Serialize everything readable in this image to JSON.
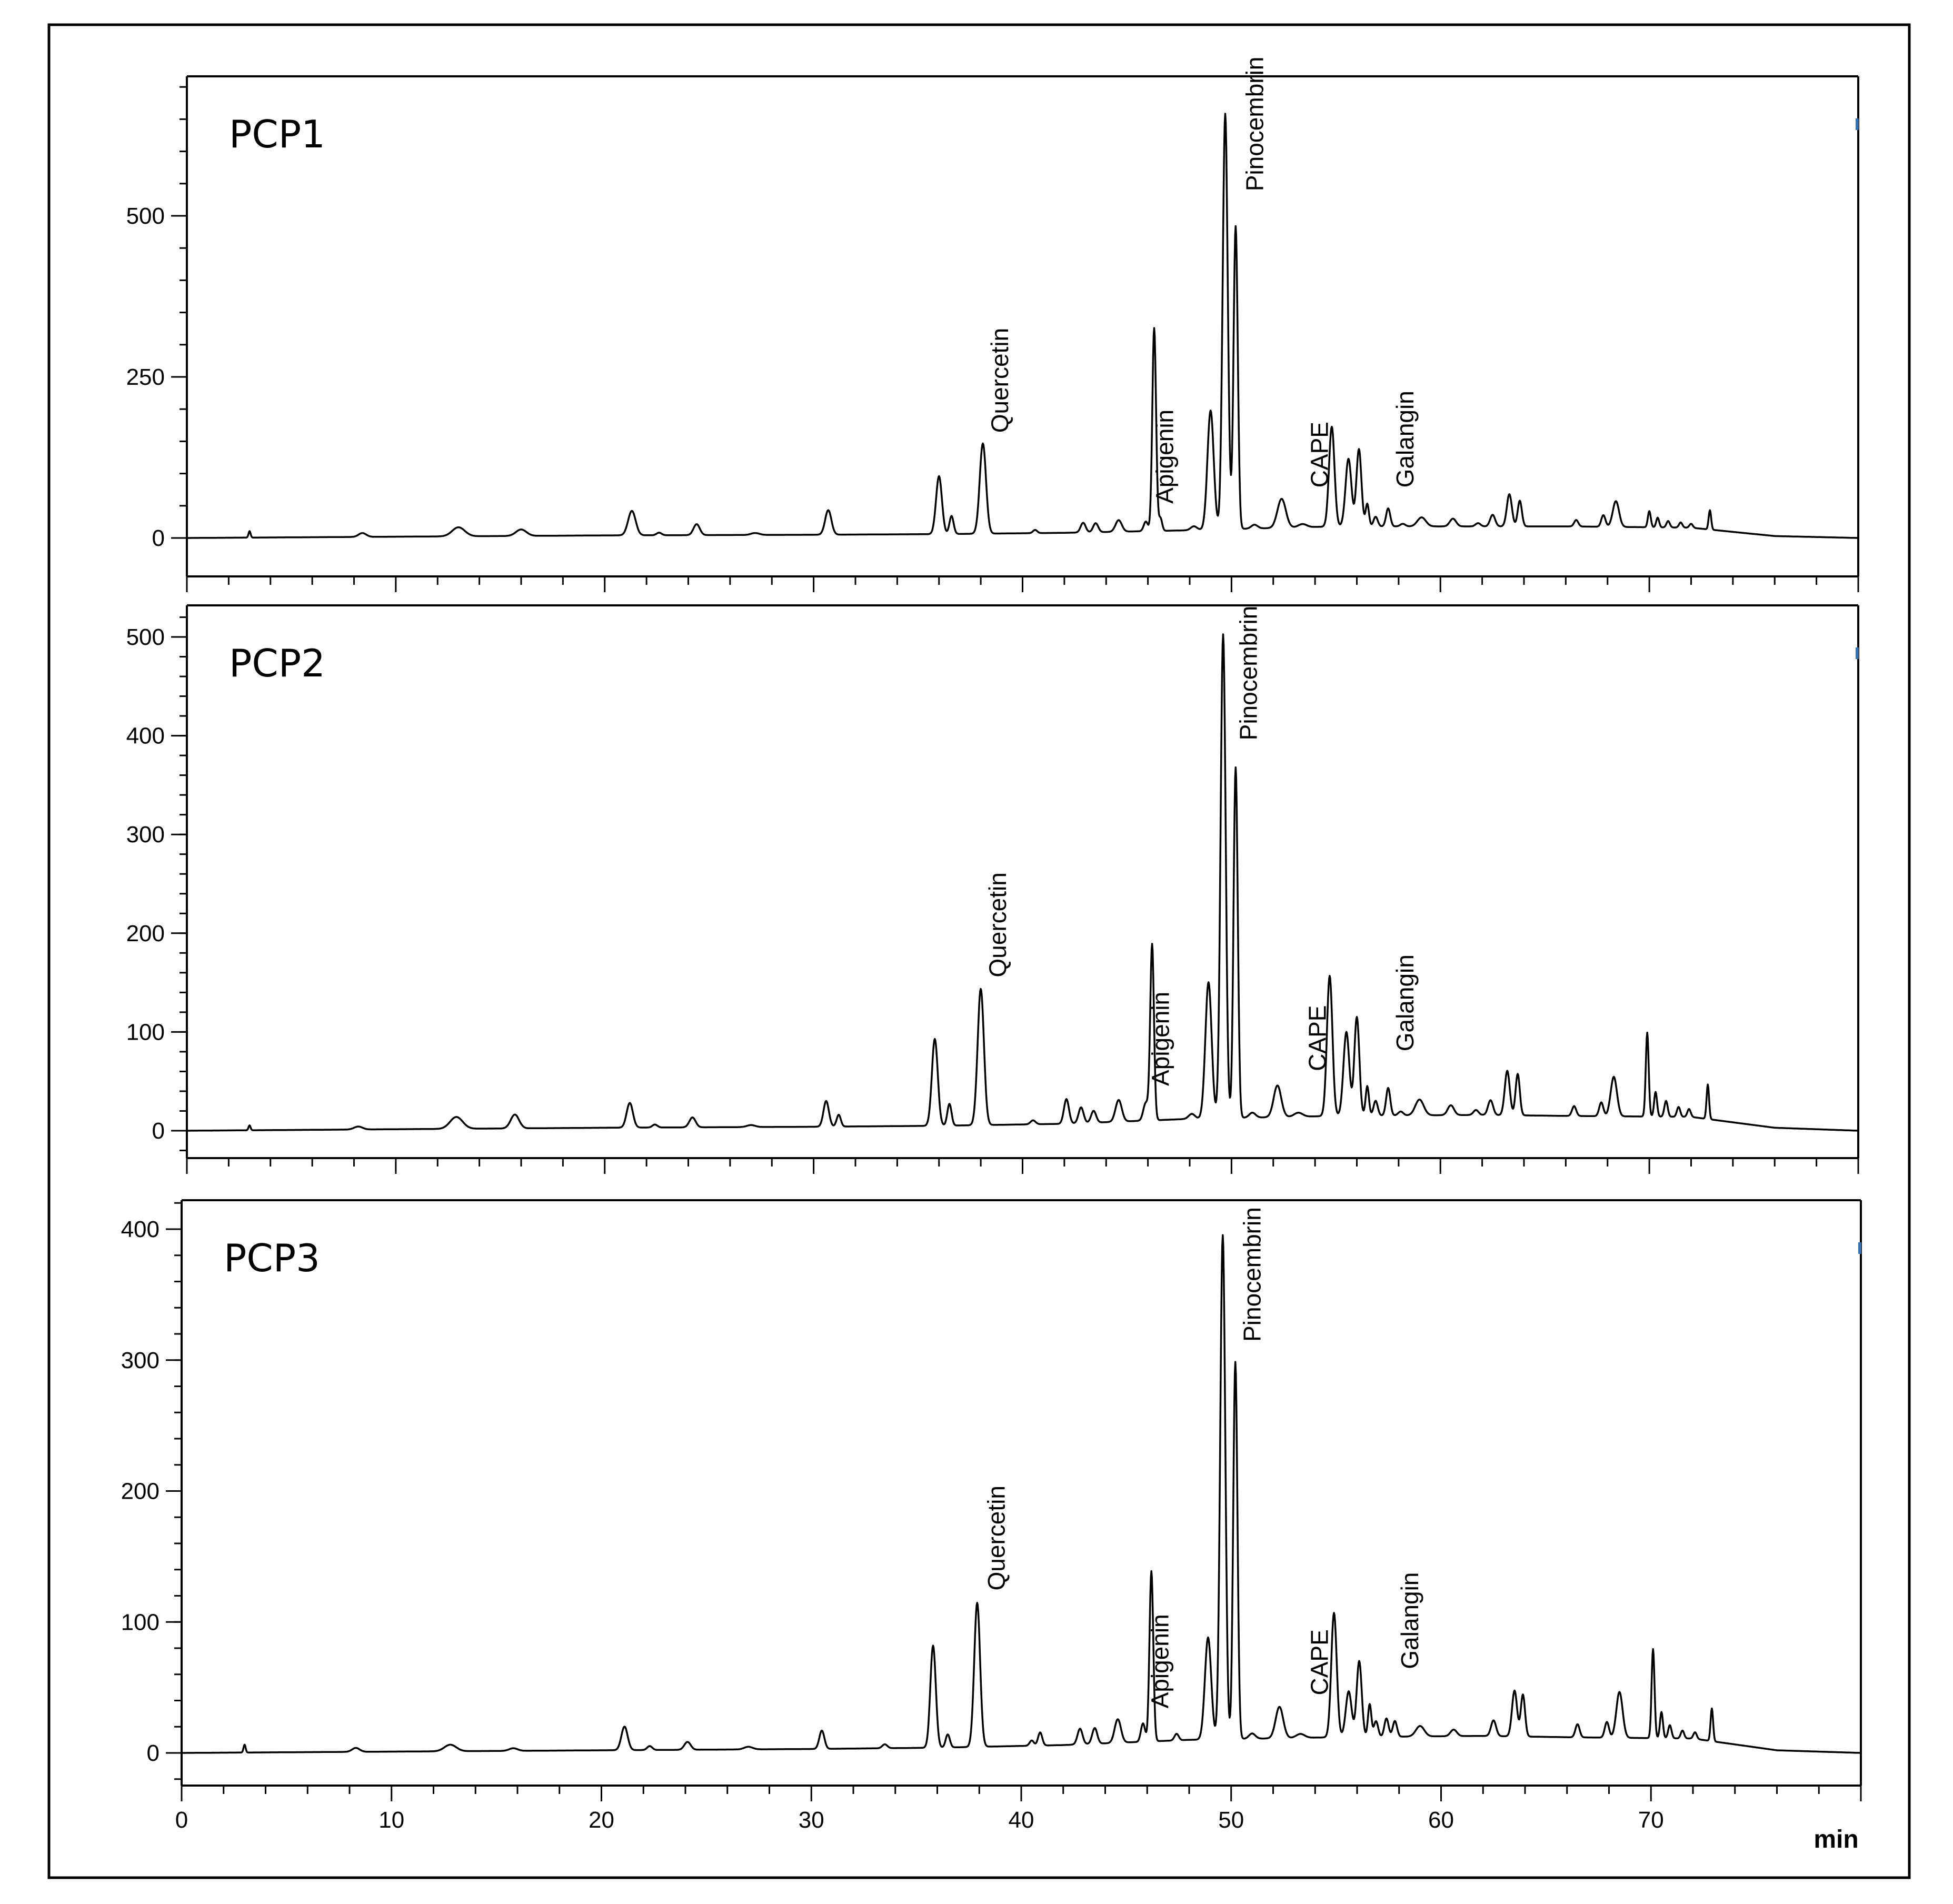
{
  "chart_data": [
    {
      "type": "line",
      "panel_label": "PCP1",
      "xlabel": "min",
      "xlim": [
        0,
        80
      ],
      "x_ticks": [
        0,
        10,
        20,
        30,
        40,
        50,
        60,
        70
      ],
      "x_tick_labels_visible": false,
      "ylim": [
        -40,
        720
      ],
      "y_ticks": [
        0,
        250,
        500
      ],
      "y_tick_labels": [
        "0",
        "250",
        "500"
      ],
      "grid": false,
      "annotations": [
        {
          "text": "Quercetin",
          "x": 38.1,
          "y": 155
        },
        {
          "text": "Apigenin",
          "x": 46.0,
          "y": 45
        },
        {
          "text": "Pinocembrin",
          "x": 50.3,
          "y": 530
        },
        {
          "text": "CAPE",
          "x": 53.4,
          "y": 70
        },
        {
          "text": "Galangin",
          "x": 57.5,
          "y": 70
        }
      ],
      "baseline": [
        [
          0,
          0
        ],
        [
          20,
          4
        ],
        [
          30,
          5
        ],
        [
          36,
          6
        ],
        [
          42,
          8
        ],
        [
          48,
          12
        ],
        [
          55,
          18
        ],
        [
          62,
          18
        ],
        [
          66,
          18
        ],
        [
          72,
          16
        ],
        [
          76,
          3
        ],
        [
          80,
          0
        ]
      ],
      "peaks": [
        [
          3.0,
          10,
          0.05
        ],
        [
          8.4,
          6,
          0.18
        ],
        [
          13.0,
          14,
          0.3
        ],
        [
          16.0,
          10,
          0.25
        ],
        [
          21.3,
          38,
          0.18
        ],
        [
          22.6,
          4,
          0.12
        ],
        [
          24.4,
          17,
          0.15
        ],
        [
          27.2,
          3,
          0.2
        ],
        [
          30.7,
          38,
          0.15
        ],
        [
          36.0,
          90,
          0.14
        ],
        [
          36.6,
          28,
          0.1
        ],
        [
          38.1,
          140,
          0.15
        ],
        [
          40.6,
          5,
          0.1
        ],
        [
          42.9,
          15,
          0.12
        ],
        [
          43.5,
          14,
          0.12
        ],
        [
          44.6,
          18,
          0.15
        ],
        [
          45.9,
          15,
          0.1
        ],
        [
          46.3,
          315,
          0.09
        ],
        [
          46.6,
          20,
          0.08
        ],
        [
          48.2,
          6,
          0.15
        ],
        [
          49.0,
          185,
          0.15
        ],
        [
          49.7,
          645,
          0.12
        ],
        [
          50.2,
          470,
          0.1
        ],
        [
          51.1,
          6,
          0.15
        ],
        [
          52.4,
          45,
          0.2
        ],
        [
          53.4,
          5,
          0.2
        ],
        [
          54.8,
          155,
          0.13
        ],
        [
          55.6,
          105,
          0.14
        ],
        [
          56.1,
          120,
          0.12
        ],
        [
          56.5,
          35,
          0.08
        ],
        [
          56.9,
          15,
          0.1
        ],
        [
          57.5,
          28,
          0.1
        ],
        [
          58.2,
          4,
          0.12
        ],
        [
          59.1,
          14,
          0.2
        ],
        [
          60.6,
          12,
          0.15
        ],
        [
          61.8,
          5,
          0.12
        ],
        [
          62.5,
          18,
          0.12
        ],
        [
          63.3,
          50,
          0.12
        ],
        [
          63.8,
          40,
          0.1
        ],
        [
          66.5,
          10,
          0.1
        ],
        [
          67.8,
          18,
          0.1
        ],
        [
          68.4,
          40,
          0.15
        ],
        [
          70.0,
          25,
          0.07
        ],
        [
          70.4,
          15,
          0.07
        ],
        [
          70.9,
          10,
          0.08
        ],
        [
          71.5,
          8,
          0.08
        ],
        [
          72.0,
          6,
          0.08
        ],
        [
          72.9,
          30,
          0.06
        ]
      ]
    },
    {
      "type": "line",
      "panel_label": "PCP2",
      "xlabel": "min",
      "xlim": [
        0,
        80
      ],
      "x_ticks": [
        0,
        10,
        20,
        30,
        40,
        50,
        60,
        70
      ],
      "x_tick_labels_visible": false,
      "ylim": [
        -30,
        530
      ],
      "y_ticks": [
        0,
        100,
        200,
        300,
        400,
        500
      ],
      "y_tick_labels": [
        "0",
        "100",
        "200",
        "300",
        "400",
        "500"
      ],
      "grid": false,
      "annotations": [
        {
          "text": "Quercetin",
          "x": 38.0,
          "y": 150
        },
        {
          "text": "Apigenin",
          "x": 45.8,
          "y": 40
        },
        {
          "text": "Pinocembrin",
          "x": 50.0,
          "y": 390
        },
        {
          "text": "CAPE",
          "x": 53.3,
          "y": 55
        },
        {
          "text": "Galangin",
          "x": 57.5,
          "y": 75
        }
      ],
      "baseline": [
        [
          0,
          0
        ],
        [
          20,
          3
        ],
        [
          30,
          4
        ],
        [
          36,
          5
        ],
        [
          42,
          7
        ],
        [
          48,
          12
        ],
        [
          55,
          15
        ],
        [
          62,
          16
        ],
        [
          66,
          15
        ],
        [
          72,
          14
        ],
        [
          76,
          3
        ],
        [
          80,
          0
        ]
      ],
      "peaks": [
        [
          3.0,
          5,
          0.05
        ],
        [
          8.2,
          3,
          0.2
        ],
        [
          12.9,
          12,
          0.3
        ],
        [
          15.7,
          14,
          0.2
        ],
        [
          21.2,
          25,
          0.15
        ],
        [
          22.4,
          3,
          0.12
        ],
        [
          24.2,
          10,
          0.15
        ],
        [
          27.0,
          2,
          0.2
        ],
        [
          30.6,
          26,
          0.13
        ],
        [
          31.2,
          12,
          0.1
        ],
        [
          35.8,
          88,
          0.14
        ],
        [
          36.5,
          22,
          0.1
        ],
        [
          38.0,
          138,
          0.15
        ],
        [
          40.5,
          4,
          0.12
        ],
        [
          42.1,
          25,
          0.12
        ],
        [
          42.8,
          16,
          0.12
        ],
        [
          43.4,
          12,
          0.12
        ],
        [
          44.6,
          22,
          0.15
        ],
        [
          45.9,
          18,
          0.12
        ],
        [
          46.2,
          178,
          0.09
        ],
        [
          48.1,
          5,
          0.15
        ],
        [
          48.9,
          138,
          0.15
        ],
        [
          49.6,
          490,
          0.12
        ],
        [
          50.2,
          355,
          0.1
        ],
        [
          51.0,
          5,
          0.15
        ],
        [
          52.2,
          32,
          0.18
        ],
        [
          53.2,
          4,
          0.2
        ],
        [
          54.7,
          142,
          0.13
        ],
        [
          55.5,
          85,
          0.14
        ],
        [
          56.0,
          100,
          0.12
        ],
        [
          56.5,
          30,
          0.08
        ],
        [
          56.9,
          15,
          0.1
        ],
        [
          57.5,
          28,
          0.1
        ],
        [
          58.1,
          4,
          0.12
        ],
        [
          59.0,
          16,
          0.2
        ],
        [
          60.5,
          10,
          0.15
        ],
        [
          61.7,
          5,
          0.12
        ],
        [
          62.4,
          15,
          0.12
        ],
        [
          63.2,
          45,
          0.12
        ],
        [
          63.7,
          42,
          0.1
        ],
        [
          66.4,
          10,
          0.1
        ],
        [
          67.7,
          14,
          0.1
        ],
        [
          68.3,
          40,
          0.15
        ],
        [
          69.9,
          85,
          0.07
        ],
        [
          70.3,
          25,
          0.07
        ],
        [
          70.8,
          16,
          0.08
        ],
        [
          71.4,
          10,
          0.08
        ],
        [
          71.9,
          8,
          0.08
        ],
        [
          72.8,
          35,
          0.06
        ]
      ]
    },
    {
      "type": "line",
      "panel_label": "PCP3",
      "xlabel": "min",
      "xlim": [
        0,
        80
      ],
      "x_ticks": [
        0,
        10,
        20,
        30,
        40,
        50,
        60,
        70
      ],
      "x_tick_labels": [
        "0",
        "10",
        "20",
        "30",
        "40",
        "50",
        "60",
        "70"
      ],
      "x_tick_labels_visible": true,
      "ylim": [
        -20,
        425
      ],
      "y_ticks": [
        0,
        100,
        200,
        300,
        400
      ],
      "y_tick_labels": [
        "0",
        "100",
        "200",
        "300",
        "400"
      ],
      "grid": false,
      "annotations": [
        {
          "text": "Quercetin",
          "x": 38.0,
          "y": 120
        },
        {
          "text": "Apigenin",
          "x": 45.8,
          "y": 30
        },
        {
          "text": "Pinocembrin",
          "x": 50.2,
          "y": 310
        },
        {
          "text": "CAPE",
          "x": 53.4,
          "y": 40
        },
        {
          "text": "Galangin",
          "x": 57.7,
          "y": 60
        }
      ],
      "baseline": [
        [
          0,
          0
        ],
        [
          20,
          2
        ],
        [
          30,
          3
        ],
        [
          36,
          4
        ],
        [
          42,
          6
        ],
        [
          48,
          10
        ],
        [
          55,
          12
        ],
        [
          62,
          13
        ],
        [
          66,
          12
        ],
        [
          72,
          11
        ],
        [
          76,
          2
        ],
        [
          80,
          0
        ]
      ],
      "peaks": [
        [
          3.0,
          6,
          0.05
        ],
        [
          8.3,
          3,
          0.18
        ],
        [
          12.8,
          5,
          0.28
        ],
        [
          15.8,
          2,
          0.2
        ],
        [
          21.1,
          18,
          0.15
        ],
        [
          22.3,
          3,
          0.12
        ],
        [
          24.1,
          6,
          0.15
        ],
        [
          27.0,
          2,
          0.2
        ],
        [
          30.5,
          14,
          0.12
        ],
        [
          33.5,
          3,
          0.12
        ],
        [
          35.8,
          78,
          0.13
        ],
        [
          36.5,
          10,
          0.1
        ],
        [
          37.9,
          110,
          0.14
        ],
        [
          40.5,
          4,
          0.1
        ],
        [
          40.9,
          10,
          0.1
        ],
        [
          42.8,
          12,
          0.12
        ],
        [
          43.5,
          12,
          0.12
        ],
        [
          44.6,
          18,
          0.15
        ],
        [
          45.8,
          14,
          0.1
        ],
        [
          46.2,
          130,
          0.09
        ],
        [
          47.4,
          5,
          0.1
        ],
        [
          48.9,
          78,
          0.15
        ],
        [
          49.6,
          385,
          0.12
        ],
        [
          50.2,
          288,
          0.1
        ],
        [
          51.0,
          4,
          0.15
        ],
        [
          52.3,
          24,
          0.18
        ],
        [
          53.3,
          3,
          0.2
        ],
        [
          54.9,
          95,
          0.13
        ],
        [
          55.6,
          35,
          0.14
        ],
        [
          56.1,
          58,
          0.12
        ],
        [
          56.6,
          25,
          0.08
        ],
        [
          56.9,
          12,
          0.1
        ],
        [
          57.4,
          14,
          0.1
        ],
        [
          57.8,
          12,
          0.1
        ],
        [
          59.0,
          8,
          0.2
        ],
        [
          60.6,
          5,
          0.15
        ],
        [
          62.5,
          12,
          0.12
        ],
        [
          63.5,
          35,
          0.12
        ],
        [
          63.9,
          32,
          0.1
        ],
        [
          66.5,
          10,
          0.1
        ],
        [
          67.9,
          12,
          0.1
        ],
        [
          68.5,
          35,
          0.15
        ],
        [
          70.1,
          68,
          0.07
        ],
        [
          70.5,
          20,
          0.07
        ],
        [
          70.9,
          10,
          0.08
        ],
        [
          71.5,
          6,
          0.08
        ],
        [
          72.1,
          5,
          0.08
        ],
        [
          72.9,
          25,
          0.06
        ]
      ]
    }
  ],
  "x_unit_label": "min"
}
